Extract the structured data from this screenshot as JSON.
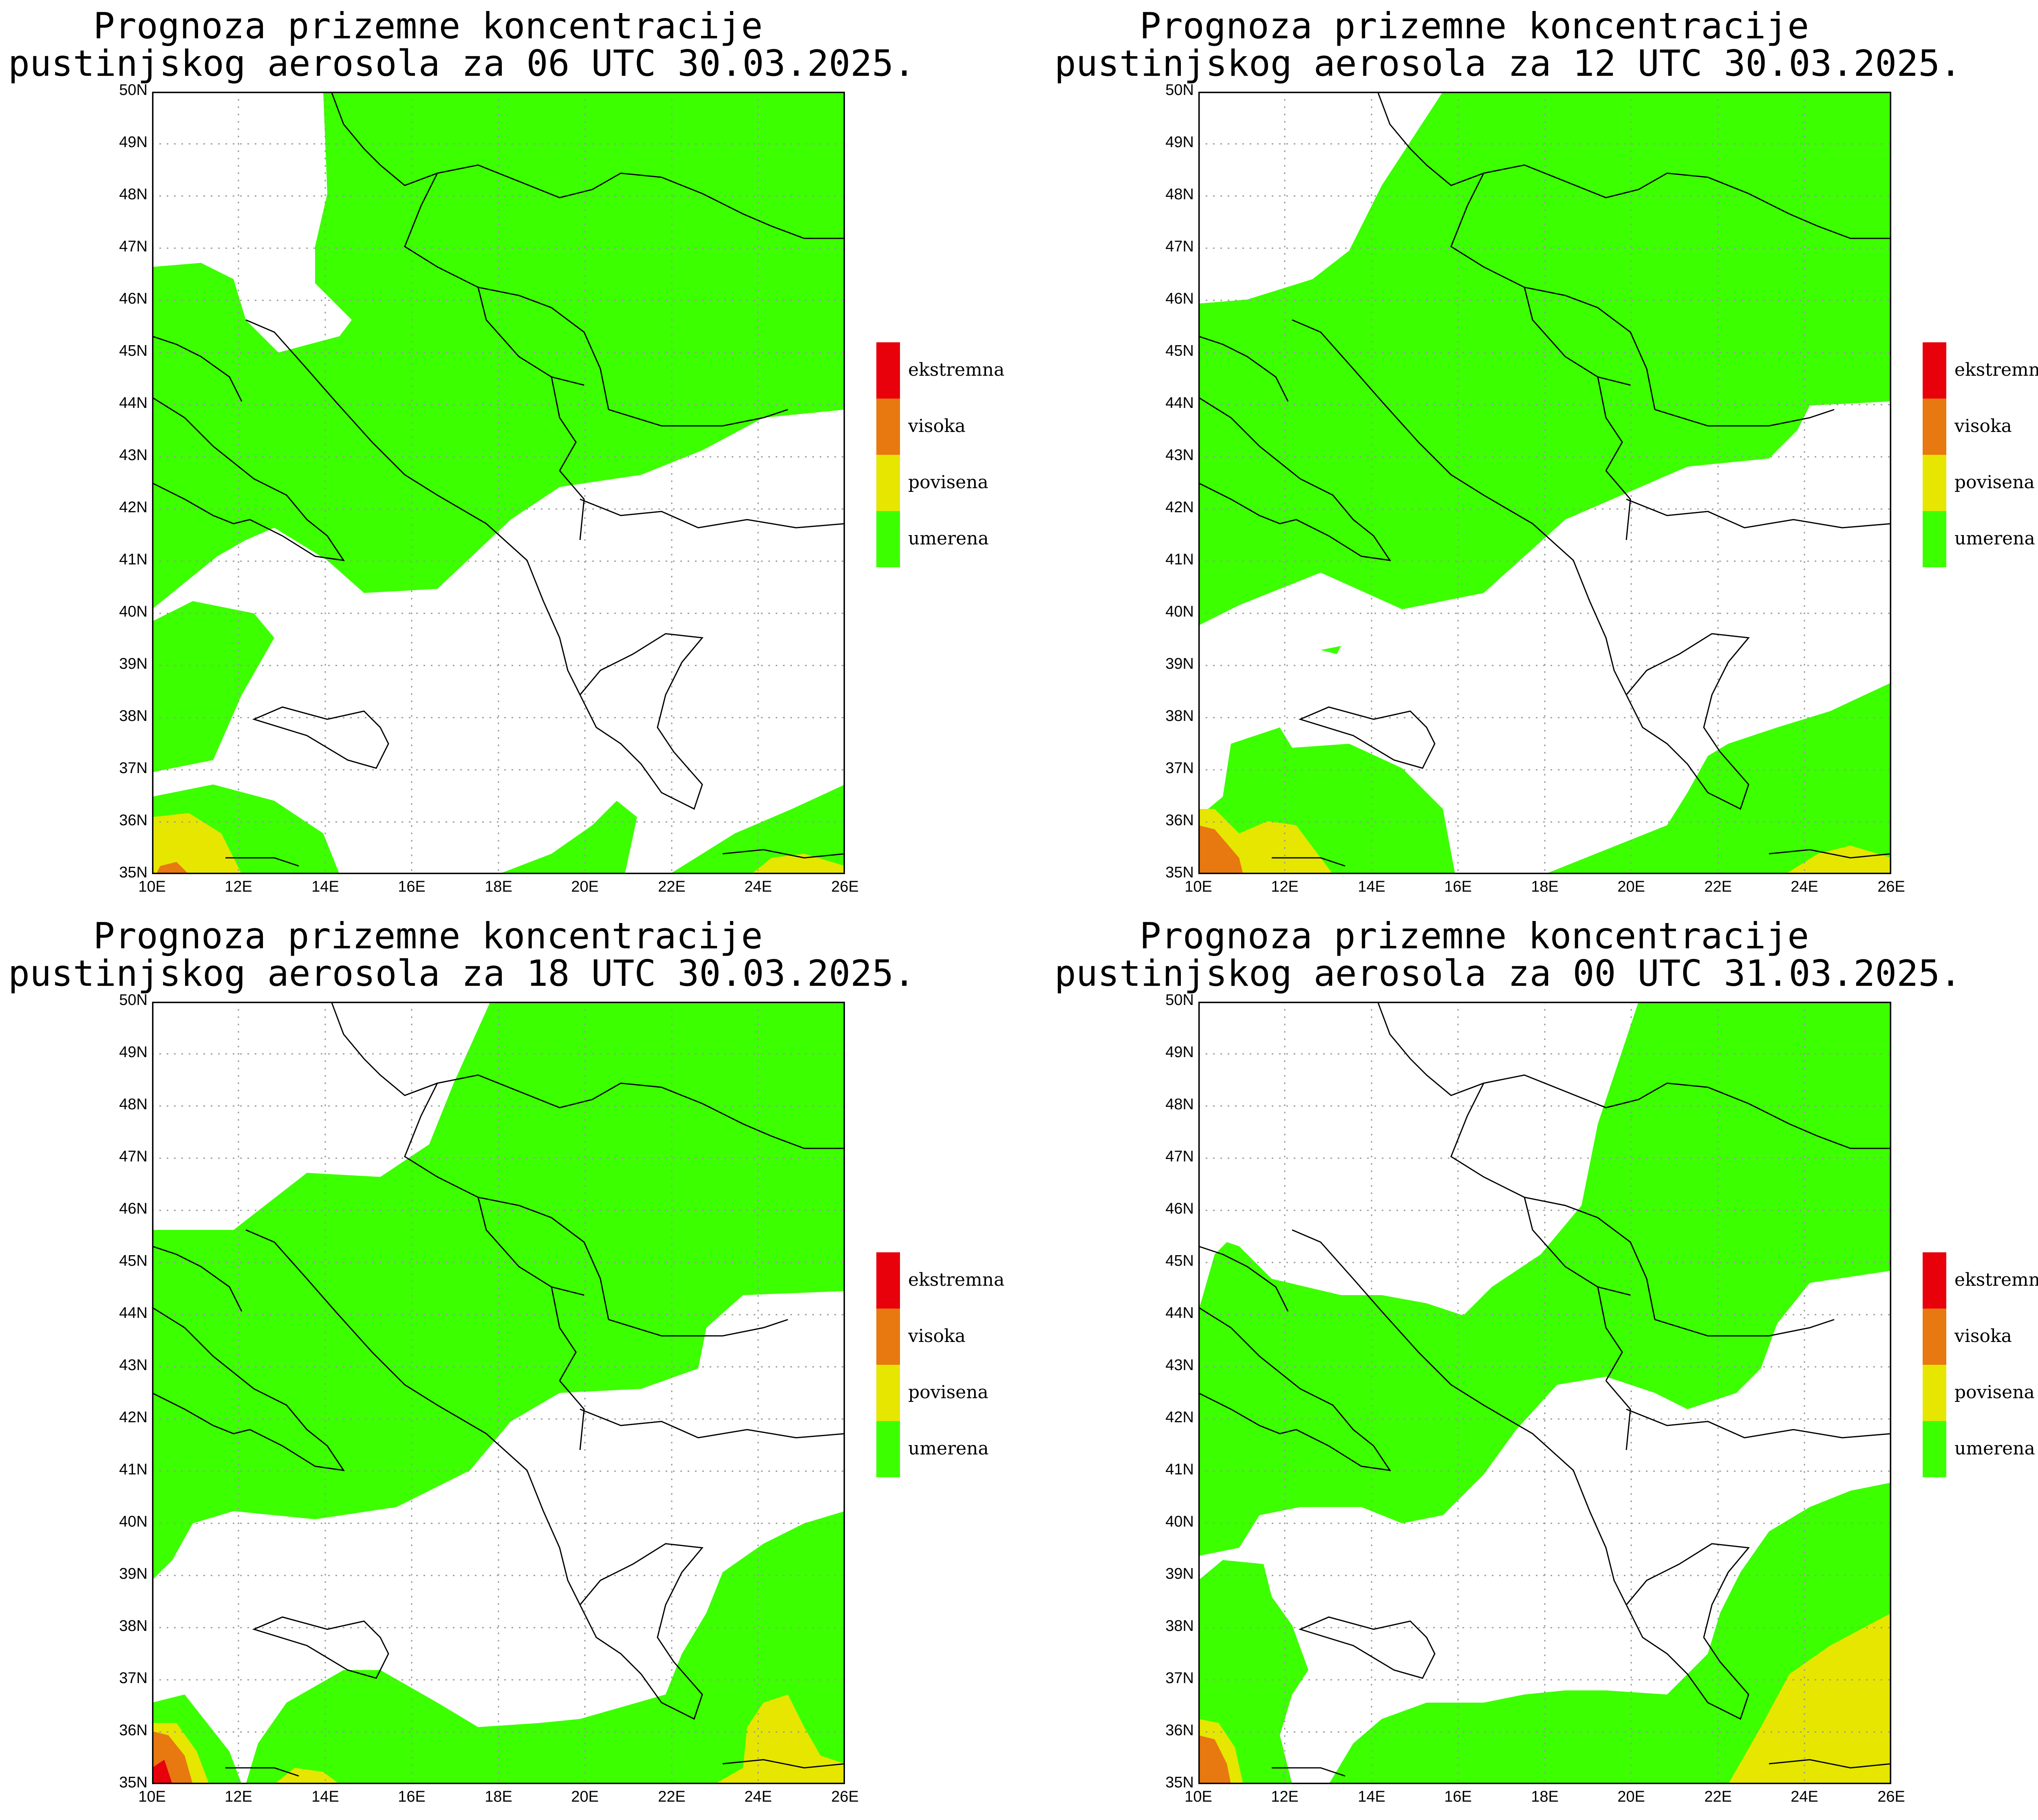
{
  "title_prefix": "Prognoza prizemne koncentracije",
  "panels": [
    {
      "title2": "pustinjskog aerosola za 06 UTC 30.03.2025."
    },
    {
      "title2": "pustinjskog aerosola za 12 UTC 30.03.2025."
    },
    {
      "title2": "pustinjskog aerosola za 18 UTC 30.03.2025."
    },
    {
      "title2": "pustinjskog aerosola za 00 UTC 31.03.2025."
    }
  ],
  "lat_labels": [
    "50N",
    "49N",
    "48N",
    "47N",
    "46N",
    "45N",
    "44N",
    "43N",
    "42N",
    "41N",
    "40N",
    "39N",
    "38N",
    "37N",
    "36N",
    "35N"
  ],
  "lon_labels": [
    "10E",
    "12E",
    "14E",
    "16E",
    "18E",
    "20E",
    "22E",
    "24E",
    "26E"
  ],
  "legend": [
    {
      "label": "ekstremna",
      "color": "#e8000b"
    },
    {
      "label": "visoka",
      "color": "#e87810"
    },
    {
      "label": "povisena",
      "color": "#e6e600"
    },
    {
      "label": "umerena",
      "color": "#3cff00"
    }
  ],
  "colors": {
    "umerena": "#3cff00",
    "povisena": "#e6e600",
    "visoka": "#e87810",
    "ekstremna": "#e8000b"
  }
}
